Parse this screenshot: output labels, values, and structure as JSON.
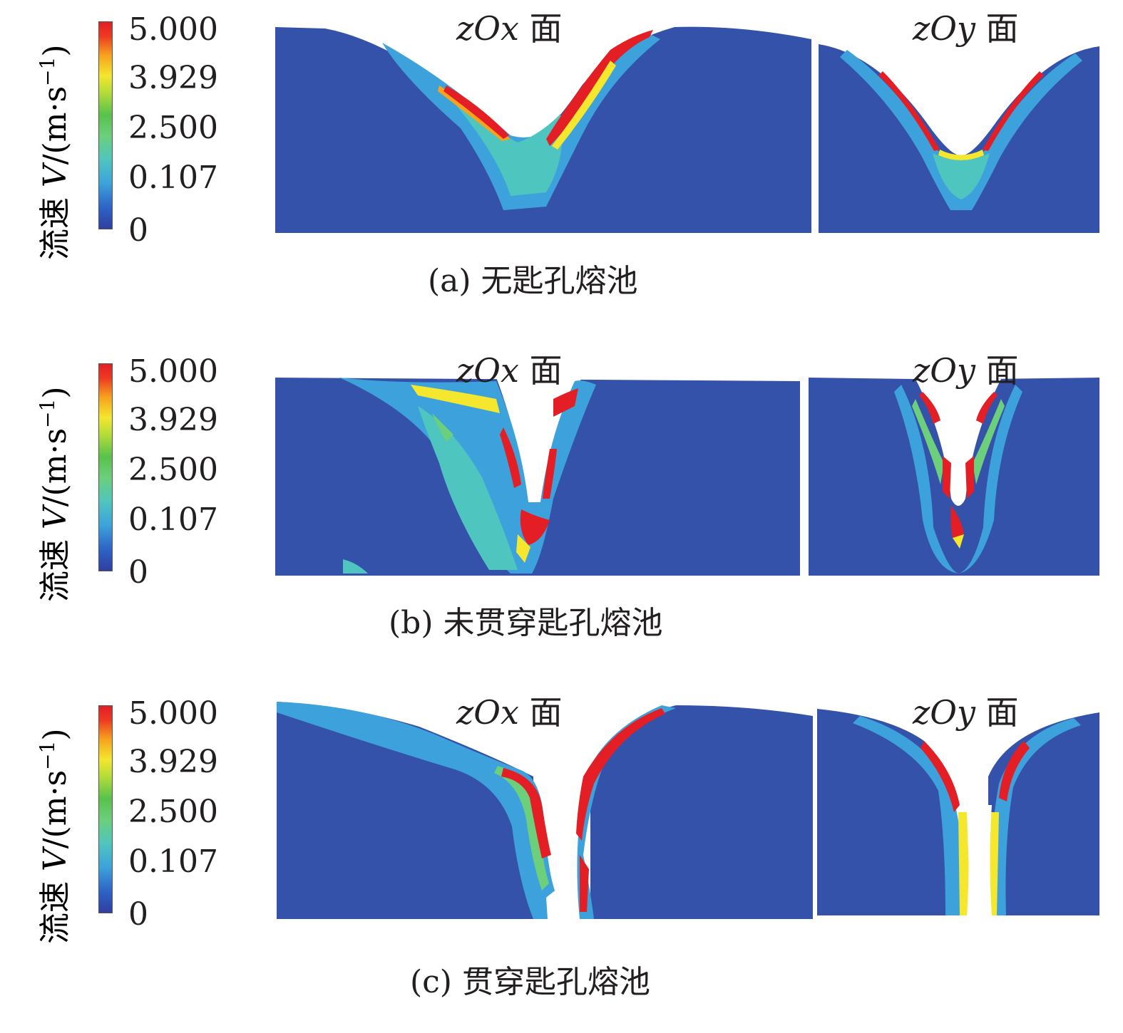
{
  "colorbar": {
    "title_prefix": "流速 ",
    "title_var": "V",
    "title_unit": "/(m·s",
    "title_exp": "−1",
    "title_close": ")",
    "ticks": [
      "5.000",
      "3.929",
      "2.500",
      "0.107",
      "0"
    ]
  },
  "colors": {
    "low": "#2f3fa0",
    "mid": "#4fc5c0",
    "high": "#e31e24",
    "void": "#ffffff"
  },
  "rows": [
    {
      "caption": "(a) 无匙孔熔池",
      "zox_label_var": "zOx",
      "zox_label_word": " 面",
      "zoy_label_var": "zOy",
      "zoy_label_word": " 面"
    },
    {
      "caption": "(b) 未贯穿匙孔熔池",
      "zox_label_var": "zOx",
      "zox_label_word": " 面",
      "zoy_label_var": "zOy",
      "zoy_label_word": " 面"
    },
    {
      "caption": "(c) 贯穿匙孔熔池",
      "zox_label_var": "zOx",
      "zox_label_word": " 面",
      "zoy_label_var": "zOy",
      "zoy_label_word": " 面"
    }
  ]
}
